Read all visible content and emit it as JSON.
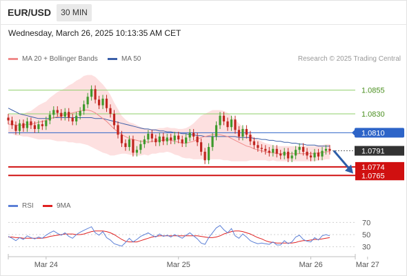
{
  "header": {
    "symbol": "EUR/USD",
    "interval": "30 MIN"
  },
  "timestamp": "Wednesday, March 26, 2025 10:13:35 AM CET",
  "legend": {
    "ma_bb_label": "MA 20 + Bollinger Bands",
    "ma50_label": "MA 50",
    "credit": "Research © 2025 Trading Central",
    "colors": {
      "ma20": "#f08a8a",
      "bollinger": "#fcd6d6",
      "ma50": "#3a5ea8"
    }
  },
  "rsi_legend": {
    "rsi_label": "RSI",
    "ma_label": "9MA",
    "colors": {
      "rsi": "#5b7fd6",
      "ma": "#e02020"
    }
  },
  "chart_data": {
    "type": "candlestick",
    "ylim": [
      1.0755,
      1.087
    ],
    "x_ticks": [
      {
        "label": "Mar 24",
        "index": 10
      },
      {
        "label": "Mar 25",
        "index": 45
      },
      {
        "label": "Mar 26",
        "index": 80
      },
      {
        "label": "Mar 27",
        "index": 95
      }
    ],
    "levels": [
      {
        "value": 1.0855,
        "label": "1.0855",
        "kind": "resistance",
        "color": "#8fcf6a"
      },
      {
        "value": 1.083,
        "label": "1.0830",
        "kind": "resistance",
        "color": "#8fcf6a"
      },
      {
        "value": 1.081,
        "label": "1.0810",
        "kind": "pivot",
        "color": "#2d64c8"
      },
      {
        "value": 1.0791,
        "label": "1.0791",
        "kind": "last",
        "color": "#333333"
      },
      {
        "value": 1.0774,
        "label": "1.0774",
        "kind": "support",
        "color": "#d01010"
      },
      {
        "value": 1.0765,
        "label": "1.0765",
        "kind": "support",
        "color": "#d01010"
      }
    ],
    "forecast_arrow": {
      "from_value": 1.0791,
      "to_value": 1.0767,
      "color": "#2d5ea8"
    },
    "closes": [
      1.0823,
      1.0818,
      1.0812,
      1.082,
      1.0815,
      1.0822,
      1.0818,
      1.0814,
      1.0819,
      1.0817,
      1.0823,
      1.0829,
      1.0834,
      1.0831,
      1.0827,
      1.0832,
      1.0826,
      1.0822,
      1.0828,
      1.0833,
      1.084,
      1.0848,
      1.0856,
      1.0845,
      1.0839,
      1.0846,
      1.0836,
      1.083,
      1.0818,
      1.0808,
      1.0799,
      1.0795,
      1.0803,
      1.0789,
      1.0792,
      1.0798,
      1.0803,
      1.0809,
      1.0804,
      1.08,
      1.0806,
      1.0801,
      1.0805,
      1.0802,
      1.0807,
      1.0803,
      1.0799,
      1.0805,
      1.081,
      1.0806,
      1.08,
      1.079,
      1.0781,
      1.0795,
      1.0806,
      1.0818,
      1.0828,
      1.0822,
      1.0816,
      1.0824,
      1.0813,
      1.0806,
      1.0814,
      1.0808,
      1.0801,
      1.0797,
      1.0794,
      1.0793,
      1.0791,
      1.0789,
      1.0793,
      1.0788,
      1.0786,
      1.079,
      1.0783,
      1.0786,
      1.0792,
      1.0795,
      1.079,
      1.0786,
      1.0784,
      1.0789,
      1.0785,
      1.0791,
      1.0793,
      1.0791
    ],
    "ma20": [
      1.0819,
      1.0819,
      1.0818,
      1.0818,
      1.0818,
      1.0819,
      1.0819,
      1.082,
      1.0821,
      1.0822,
      1.0823,
      1.0825,
      1.0826,
      1.0827,
      1.0828,
      1.0829,
      1.083,
      1.0831,
      1.0832,
      1.0833,
      1.0834,
      1.0834,
      1.0833,
      1.0831,
      1.0828,
      1.0825,
      1.0822,
      1.0818,
      1.0814,
      1.0811,
      1.0808,
      1.0806,
      1.0804,
      1.0803,
      1.0802,
      1.0801,
      1.0801,
      1.08,
      1.0801,
      1.0801,
      1.0802,
      1.0802,
      1.0803,
      1.0802,
      1.0801,
      1.08,
      1.0799,
      1.0799,
      1.08,
      1.0801,
      1.0803,
      1.0805,
      1.0806,
      1.0807,
      1.0808,
      1.0808,
      1.0808,
      1.0807,
      1.0806,
      1.0804,
      1.0802,
      1.08,
      1.0798,
      1.0796,
      1.0795,
      1.0793,
      1.0792,
      1.0791,
      1.079,
      1.0789,
      1.0789,
      1.0788,
      1.0788,
      1.0788,
      1.0788,
      1.0788,
      1.0788,
      1.0788,
      1.0788,
      1.0788,
      1.0788,
      1.0788,
      1.0789,
      1.0789,
      1.079,
      1.079
    ],
    "ma50": [
      1.0836,
      1.0834,
      1.0832,
      1.083,
      1.0829,
      1.0828,
      1.0827,
      1.0826,
      1.0825,
      1.0825,
      1.0825,
      1.0825,
      1.0826,
      1.0826,
      1.0826,
      1.0826,
      1.0826,
      1.0826,
      1.0826,
      1.0826,
      1.0826,
      1.0826,
      1.0826,
      1.0825,
      1.0825,
      1.0825,
      1.0824,
      1.0823,
      1.0822,
      1.0821,
      1.082,
      1.0819,
      1.0818,
      1.0817,
      1.0816,
      1.0815,
      1.0814,
      1.0814,
      1.0813,
      1.0813,
      1.0812,
      1.0812,
      1.0811,
      1.0811,
      1.081,
      1.081,
      1.0809,
      1.0809,
      1.0808,
      1.0808,
      1.0807,
      1.0807,
      1.0806,
      1.0806,
      1.0806,
      1.0806,
      1.0806,
      1.0806,
      1.0806,
      1.0806,
      1.0806,
      1.0805,
      1.0805,
      1.0805,
      1.0805,
      1.0804,
      1.0804,
      1.0803,
      1.0803,
      1.0802,
      1.0802,
      1.0801,
      1.0801,
      1.08,
      1.08,
      1.0799,
      1.0799,
      1.0798,
      1.0798,
      1.0797,
      1.0797,
      1.0797,
      1.0796,
      1.0796,
      1.0796,
      1.0796
    ],
    "bb_width": [
      0.001,
      0.001,
      0.0011,
      0.0011,
      0.0012,
      0.0013,
      0.0014,
      0.0016,
      0.0018,
      0.0019,
      0.002,
      0.0022,
      0.0024,
      0.0026,
      0.0027,
      0.0028,
      0.003,
      0.0031,
      0.0033,
      0.0034,
      0.0036,
      0.0037,
      0.0038,
      0.0038,
      0.0037,
      0.0036,
      0.0034,
      0.0032,
      0.0028,
      0.0024,
      0.002,
      0.0018,
      0.0017,
      0.0017,
      0.0016,
      0.0015,
      0.0014,
      0.0014,
      0.0013,
      0.0013,
      0.0013,
      0.0013,
      0.0013,
      0.0013,
      0.0014,
      0.0014,
      0.0015,
      0.0016,
      0.0017,
      0.0019,
      0.0021,
      0.0023,
      0.0024,
      0.0025,
      0.0026,
      0.0026,
      0.0026,
      0.0026,
      0.0025,
      0.0024,
      0.0022,
      0.002,
      0.0018,
      0.0016,
      0.0014,
      0.0012,
      0.0011,
      0.001,
      0.0009,
      0.0009,
      0.0008,
      0.0008,
      0.0008,
      0.0008,
      0.0008,
      0.0008,
      0.0008,
      0.0008,
      0.0008,
      0.0008,
      0.0008,
      0.0008,
      0.0008,
      0.0008,
      0.0008,
      0.0008
    ],
    "rsi": {
      "ylim": [
        25,
        75
      ],
      "ticks": [
        {
          "value": 70,
          "label": "70"
        },
        {
          "value": 50,
          "label": "50"
        },
        {
          "value": 30,
          "label": "30"
        }
      ],
      "rsi_values": [
        47,
        44,
        40,
        45,
        42,
        48,
        45,
        43,
        46,
        44,
        49,
        53,
        56,
        52,
        49,
        53,
        47,
        44,
        50,
        54,
        57,
        60,
        63,
        53,
        49,
        55,
        45,
        41,
        35,
        33,
        31,
        37,
        44,
        38,
        42,
        47,
        50,
        53,
        49,
        46,
        51,
        47,
        49,
        46,
        50,
        47,
        44,
        49,
        53,
        48,
        43,
        36,
        34,
        45,
        53,
        61,
        65,
        58,
        53,
        60,
        48,
        44,
        51,
        46,
        40,
        37,
        35,
        36,
        35,
        34,
        38,
        33,
        33,
        40,
        35,
        38,
        46,
        49,
        42,
        39,
        38,
        45,
        41,
        48,
        50,
        48
      ],
      "ma_values": [
        46,
        46,
        45,
        45,
        44,
        44,
        44,
        44,
        44,
        44,
        45,
        47,
        48,
        49,
        50,
        51,
        51,
        51,
        50,
        50,
        51,
        53,
        55,
        56,
        56,
        56,
        55,
        53,
        50,
        46,
        42,
        39,
        38,
        38,
        38,
        40,
        42,
        44,
        46,
        47,
        48,
        48,
        48,
        48,
        48,
        48,
        48,
        48,
        48,
        48,
        48,
        47,
        46,
        45,
        45,
        46,
        48,
        51,
        53,
        55,
        56,
        56,
        55,
        53,
        51,
        48,
        45,
        43,
        40,
        38,
        37,
        36,
        36,
        36,
        36,
        36,
        37,
        39,
        40,
        40,
        41,
        42,
        42,
        43,
        44,
        45
      ]
    }
  }
}
